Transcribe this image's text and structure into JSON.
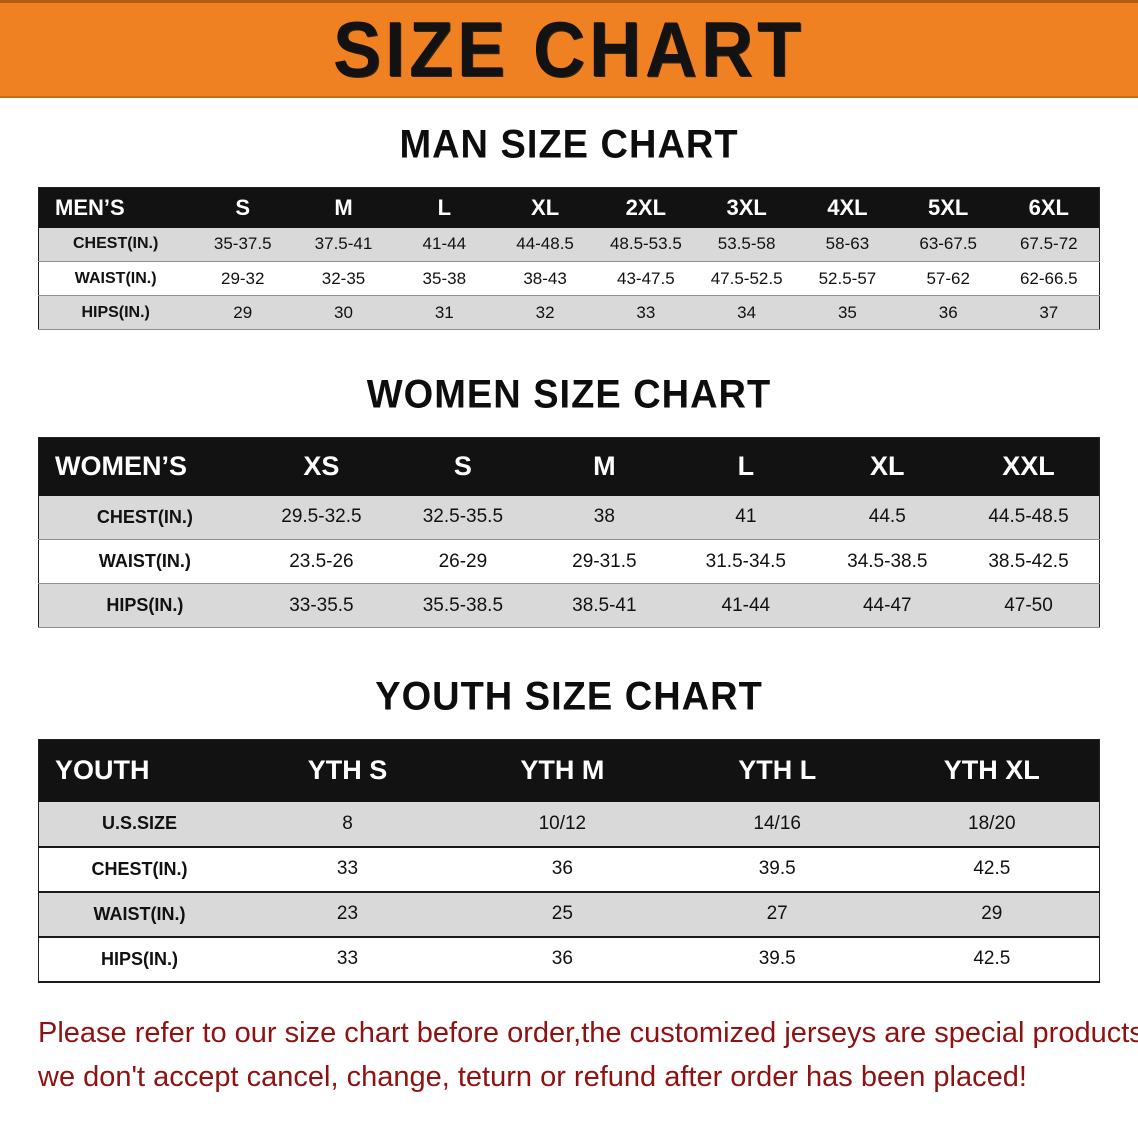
{
  "banner": {
    "title": "SIZE CHART",
    "bg_color": "#ef8123"
  },
  "sections": [
    {
      "heading": "MAN SIZE CHART",
      "table": {
        "header": [
          "MEN’S",
          "S",
          "M",
          "L",
          "XL",
          "2XL",
          "3XL",
          "4XL",
          "5XL",
          "6XL"
        ],
        "rows": [
          [
            "CHEST(IN.)",
            "35-37.5",
            "37.5-41",
            "41-44",
            "44-48.5",
            "48.5-53.5",
            "53.5-58",
            "58-63",
            "63-67.5",
            "67.5-72"
          ],
          [
            "WAIST(IN.)",
            "29-32",
            "32-35",
            "35-38",
            "38-43",
            "43-47.5",
            "47.5-52.5",
            "52.5-57",
            "57-62",
            "62-66.5"
          ],
          [
            "HIPS(IN.)",
            "29",
            "30",
            "31",
            "32",
            "33",
            "34",
            "35",
            "36",
            "37"
          ]
        ]
      }
    },
    {
      "heading": "WOMEN SIZE CHART",
      "table": {
        "header": [
          "WOMEN’S",
          "XS",
          "S",
          "M",
          "L",
          "XL",
          "XXL"
        ],
        "rows": [
          [
            "CHEST(IN.)",
            "29.5-32.5",
            "32.5-35.5",
            "38",
            "41",
            "44.5",
            "44.5-48.5"
          ],
          [
            "WAIST(IN.)",
            "23.5-26",
            "26-29",
            "29-31.5",
            "31.5-34.5",
            "34.5-38.5",
            "38.5-42.5"
          ],
          [
            "HIPS(IN.)",
            "33-35.5",
            "35.5-38.5",
            "38.5-41",
            "41-44",
            "44-47",
            "47-50"
          ]
        ]
      }
    },
    {
      "heading": "YOUTH SIZE CHART",
      "table": {
        "header": [
          "YOUTH",
          "YTH S",
          "YTH M",
          "YTH L",
          "YTH XL"
        ],
        "rows": [
          [
            "U.S.SIZE",
            "8",
            "10/12",
            "14/16",
            "18/20"
          ],
          [
            "CHEST(IN.)",
            "33",
            "36",
            "39.5",
            "42.5"
          ],
          [
            "WAIST(IN.)",
            "23",
            "25",
            "27",
            "29"
          ],
          [
            "HIPS(IN.)",
            "33",
            "36",
            "39.5",
            "42.5"
          ]
        ]
      }
    }
  ],
  "disclaimer": {
    "line1": "Please refer to our size chart before order,the customized jerseys are special products,",
    "line2": "we don't accept cancel, change, teturn or refund after order has been placed!",
    "color": "#8f1212"
  }
}
